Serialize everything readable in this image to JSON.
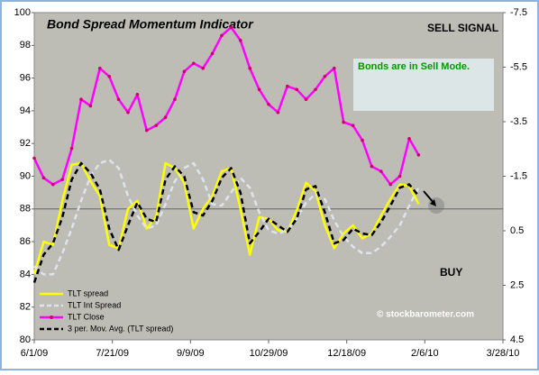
{
  "chart_data": {
    "type": "line",
    "title": "Bond Spread Momentum Indicator",
    "annotations": {
      "signal": "SELL SIGNAL",
      "mode": "Bonds are in Sell Mode.",
      "buy": "BUY",
      "credit": "© stockbarometer.com"
    },
    "x": [
      0,
      6,
      12,
      18,
      24,
      30,
      36,
      42,
      48,
      54,
      60,
      66,
      72,
      78,
      84,
      90,
      96,
      102,
      108,
      114,
      120,
      126,
      132,
      138,
      144,
      150,
      156,
      162,
      168,
      174,
      180,
      186,
      192,
      198,
      204,
      210,
      216,
      222,
      228,
      234,
      240,
      246
    ],
    "series": [
      {
        "name": "TLT spread",
        "color": "#ffff00",
        "dash": false,
        "marker": false,
        "values": [
          84.0,
          86,
          85.8,
          88.5,
          90.7,
          90.8,
          89.7,
          88.8,
          85.8,
          85.6,
          88,
          88.5,
          86.8,
          87.5,
          90.8,
          90.5,
          89.6,
          86.8,
          88,
          88.8,
          90.3,
          90.5,
          88,
          85.2,
          87.5,
          87.4,
          86.7,
          86.6,
          87.9,
          89.6,
          89.1,
          87,
          85.6,
          86.5,
          87,
          86.2,
          86.5,
          87.6,
          88.6,
          89.5,
          89.4,
          88.3
        ]
      },
      {
        "name": "TLT Int Spread",
        "color": "#dde4ee",
        "dash": true,
        "marker": false,
        "values": [
          84.5,
          84.0,
          84.0,
          85.3,
          86.8,
          88.5,
          90,
          90.8,
          91,
          90.5,
          88.8,
          87.6,
          86.8,
          87,
          88.3,
          89.7,
          90.5,
          90.8,
          89.8,
          88.3,
          88.2,
          89,
          89.9,
          89.3,
          87.8,
          86.7,
          86.5,
          86.7,
          87.4,
          88.4,
          88.9,
          88.6,
          87.3,
          86.3,
          85.7,
          85.3,
          85.3,
          85.7,
          86.3,
          87,
          88.2,
          89.3
        ]
      },
      {
        "name": "TLT Close",
        "color": "#ff00ff",
        "dash": false,
        "marker": true,
        "values": [
          91.1,
          89.9,
          89.5,
          89.8,
          91.7,
          94.7,
          94.3,
          96.6,
          96.1,
          94.7,
          93.9,
          95.0,
          92.8,
          93.1,
          93.6,
          94.7,
          96.4,
          96.9,
          96.6,
          97.5,
          98.6,
          99.1,
          98.3,
          96.6,
          95.3,
          94.4,
          93.9,
          95.5,
          95.3,
          94.7,
          95.3,
          96.1,
          96.6,
          93.3,
          93.1,
          92.2,
          90.6,
          90.3,
          89.5,
          90.0,
          92.3,
          91.3
        ]
      },
      {
        "name": "3 per. Mov. Avg. (TLT spread)",
        "color": "#000000",
        "dash": true,
        "marker": false,
        "values": [
          83.5,
          85.2,
          85.9,
          87.5,
          89.8,
          90.8,
          90.2,
          89.2,
          86.8,
          85.5,
          87,
          88.4,
          87.4,
          87.2,
          89.8,
          90.6,
          90,
          87.8,
          87.6,
          88.5,
          89.9,
          90.5,
          89,
          85.9,
          86.6,
          87.4,
          87,
          86.6,
          87.4,
          89.2,
          89.4,
          87.8,
          85.9,
          86.1,
          86.8,
          86.5,
          86.4,
          87.2,
          88.2,
          89.3,
          89.5,
          88.8
        ]
      }
    ],
    "xlim": [
      0,
      300
    ],
    "xticks": [
      {
        "value": 0,
        "label": "6/1/09"
      },
      {
        "value": 50,
        "label": "7/21/09"
      },
      {
        "value": 100,
        "label": "9/9/09"
      },
      {
        "value": 150,
        "label": "10/29/09"
      },
      {
        "value": 200,
        "label": "12/18/09"
      },
      {
        "value": 250,
        "label": "2/6/10"
      },
      {
        "value": 300,
        "label": "3/28/10"
      }
    ],
    "ylim": [
      80,
      100
    ],
    "yticks": [
      80,
      82,
      84,
      86,
      88,
      90,
      92,
      94,
      96,
      98,
      100
    ],
    "y2lim": [
      -7.5,
      4.5
    ],
    "y2_inverted": true,
    "y2ticks": [
      -7.5,
      -5.5,
      -3.5,
      -1.5,
      0.5,
      2.5,
      4.5
    ],
    "reference_line": 88,
    "legend": "lower left"
  }
}
